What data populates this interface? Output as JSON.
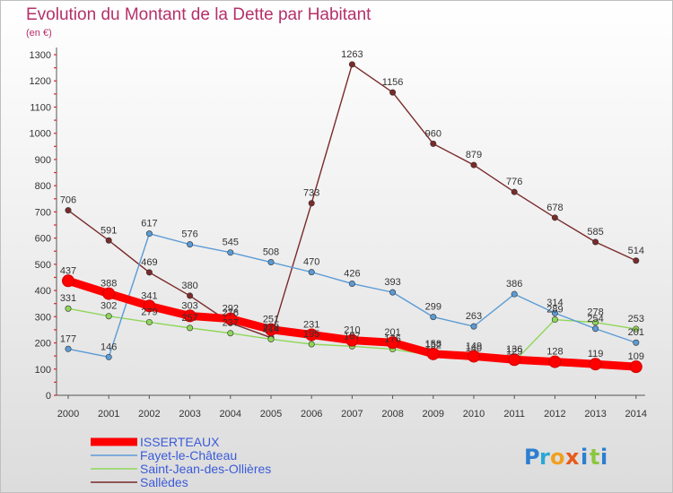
{
  "header": {
    "title": "Evolution du Montant de la Dette par Habitant",
    "subtitle": "(en €)"
  },
  "logo": {
    "letters": [
      {
        "ch": "P",
        "color": "#2c7fd0"
      },
      {
        "ch": "r",
        "color": "#2aa7d6"
      },
      {
        "ch": "o",
        "color": "#f0a020"
      },
      {
        "ch": "x",
        "color": "#e85a1c"
      },
      {
        "ch": "i",
        "color": "#2c7fd0"
      },
      {
        "ch": "t",
        "color": "#8cc63f"
      },
      {
        "ch": "i",
        "color": "#2c7fd0"
      }
    ]
  },
  "chart_data": {
    "type": "line",
    "categories": [
      "2000",
      "2001",
      "2002",
      "2003",
      "2004",
      "2005",
      "2006",
      "2007",
      "2008",
      "2009",
      "2010",
      "2011",
      "2012",
      "2013",
      "2014"
    ],
    "y_ticks": [
      0,
      100,
      200,
      300,
      400,
      500,
      600,
      700,
      800,
      900,
      1000,
      1100,
      1200,
      1300
    ],
    "ylim": [
      0,
      1300
    ],
    "grid": false,
    "legend_position": "bottom-left",
    "series": [
      {
        "name": "Sallèdes",
        "color": "#7a2a2a",
        "weight": "thin",
        "values": [
          706,
          591,
          469,
          380,
          276,
          220,
          733,
          1263,
          1156,
          960,
          879,
          776,
          678,
          585,
          514
        ]
      },
      {
        "name": "Saint-Jean-des-Ollières",
        "color": "#8fd65a",
        "weight": "thin",
        "values": [
          331,
          302,
          279,
          257,
          237,
          214,
          195,
          187,
          176,
          152,
          140,
          129,
          289,
          278,
          253
        ]
      },
      {
        "name": "Fayet-le-Château",
        "color": "#5b9bd5",
        "weight": "thin",
        "values": [
          177,
          146,
          617,
          576,
          545,
          508,
          470,
          426,
          393,
          299,
          263,
          386,
          314,
          254,
          201
        ]
      },
      {
        "name": "ISSERTEAUX",
        "color": "#ff0000",
        "weight": "thick",
        "values": [
          437,
          388,
          341,
          303,
          292,
          251,
          231,
          210,
          201,
          158,
          149,
          136,
          128,
          119,
          109
        ]
      }
    ],
    "legend_order": [
      "ISSERTEAUX",
      "Fayet-le-Château",
      "Saint-Jean-des-Ollières",
      "Sallèdes"
    ]
  }
}
